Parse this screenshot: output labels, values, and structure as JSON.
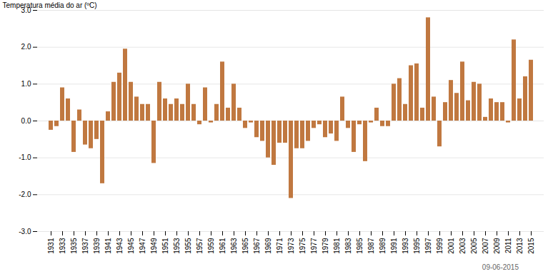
{
  "chart_data": {
    "type": "bar",
    "categories": [
      "1931",
      null,
      "1933",
      null,
      "1935",
      null,
      "1937",
      null,
      "1939",
      null,
      "1941",
      null,
      "1943",
      null,
      "1945",
      null,
      "1947",
      null,
      "1949",
      null,
      "1951",
      null,
      "1953",
      null,
      "1955",
      null,
      "1957",
      null,
      "1959",
      null,
      "1961",
      null,
      "1963",
      null,
      "1965",
      null,
      "1967",
      null,
      "1969",
      null,
      "1971",
      null,
      "1973",
      null,
      "1975",
      null,
      "1977",
      null,
      "1979",
      null,
      "1981",
      null,
      "1983",
      null,
      "1985",
      null,
      "1987",
      null,
      "1989",
      null,
      "1991",
      null,
      "1993",
      null,
      "1995",
      null,
      "1997",
      null,
      "1999",
      null,
      "2001",
      null,
      "2003",
      null,
      "2005",
      null,
      "2007",
      null,
      "2009",
      null,
      "2011",
      null,
      "2013",
      null,
      "2015"
    ],
    "values": [
      -0.25,
      -0.15,
      0.9,
      0.6,
      -0.85,
      0.3,
      -0.65,
      -0.75,
      -0.5,
      -1.7,
      0.25,
      1.05,
      1.3,
      1.95,
      1.05,
      0.65,
      0.45,
      0.45,
      -1.15,
      1.05,
      0.6,
      0.45,
      0.6,
      0.45,
      1.0,
      0.45,
      -0.1,
      0.9,
      -0.05,
      0.45,
      1.6,
      0.35,
      1.0,
      0.35,
      -0.2,
      -0.05,
      -0.45,
      -0.55,
      -1.0,
      -1.2,
      -0.6,
      -0.6,
      -2.1,
      -0.75,
      -0.75,
      -0.55,
      -0.2,
      -0.1,
      -0.45,
      -0.35,
      -0.55,
      0.65,
      -0.2,
      -0.85,
      -0.1,
      -1.1,
      -0.05,
      0.35,
      -0.15,
      -0.15,
      1.0,
      1.15,
      0.45,
      1.5,
      1.55,
      0.35,
      2.8,
      0.65,
      -0.7,
      0.5,
      1.1,
      0.75,
      1.6,
      0.55,
      1.05,
      1.0,
      0.1,
      0.6,
      0.5,
      0.5,
      -0.05,
      2.2,
      0.6,
      1.2,
      1.65
    ],
    "color": "#c07840",
    "ylabel": "Temperatura média do ar (ºC)",
    "ylim": [
      -3.0,
      3.0
    ],
    "yticks": [
      {
        "value": -3.0,
        "label": "-3.0"
      },
      {
        "value": -2.0,
        "label": "-2.0"
      },
      {
        "value": -1.0,
        "label": "-1.0"
      },
      {
        "value": 0.0,
        "label": "0.0"
      },
      {
        "value": 1.0,
        "label": "1.0"
      },
      {
        "value": 2.0,
        "label": "2.0"
      },
      {
        "value": 3.0,
        "label": "3.0"
      }
    ],
    "annotations": [
      "09-06-2015"
    ],
    "grid": true
  }
}
